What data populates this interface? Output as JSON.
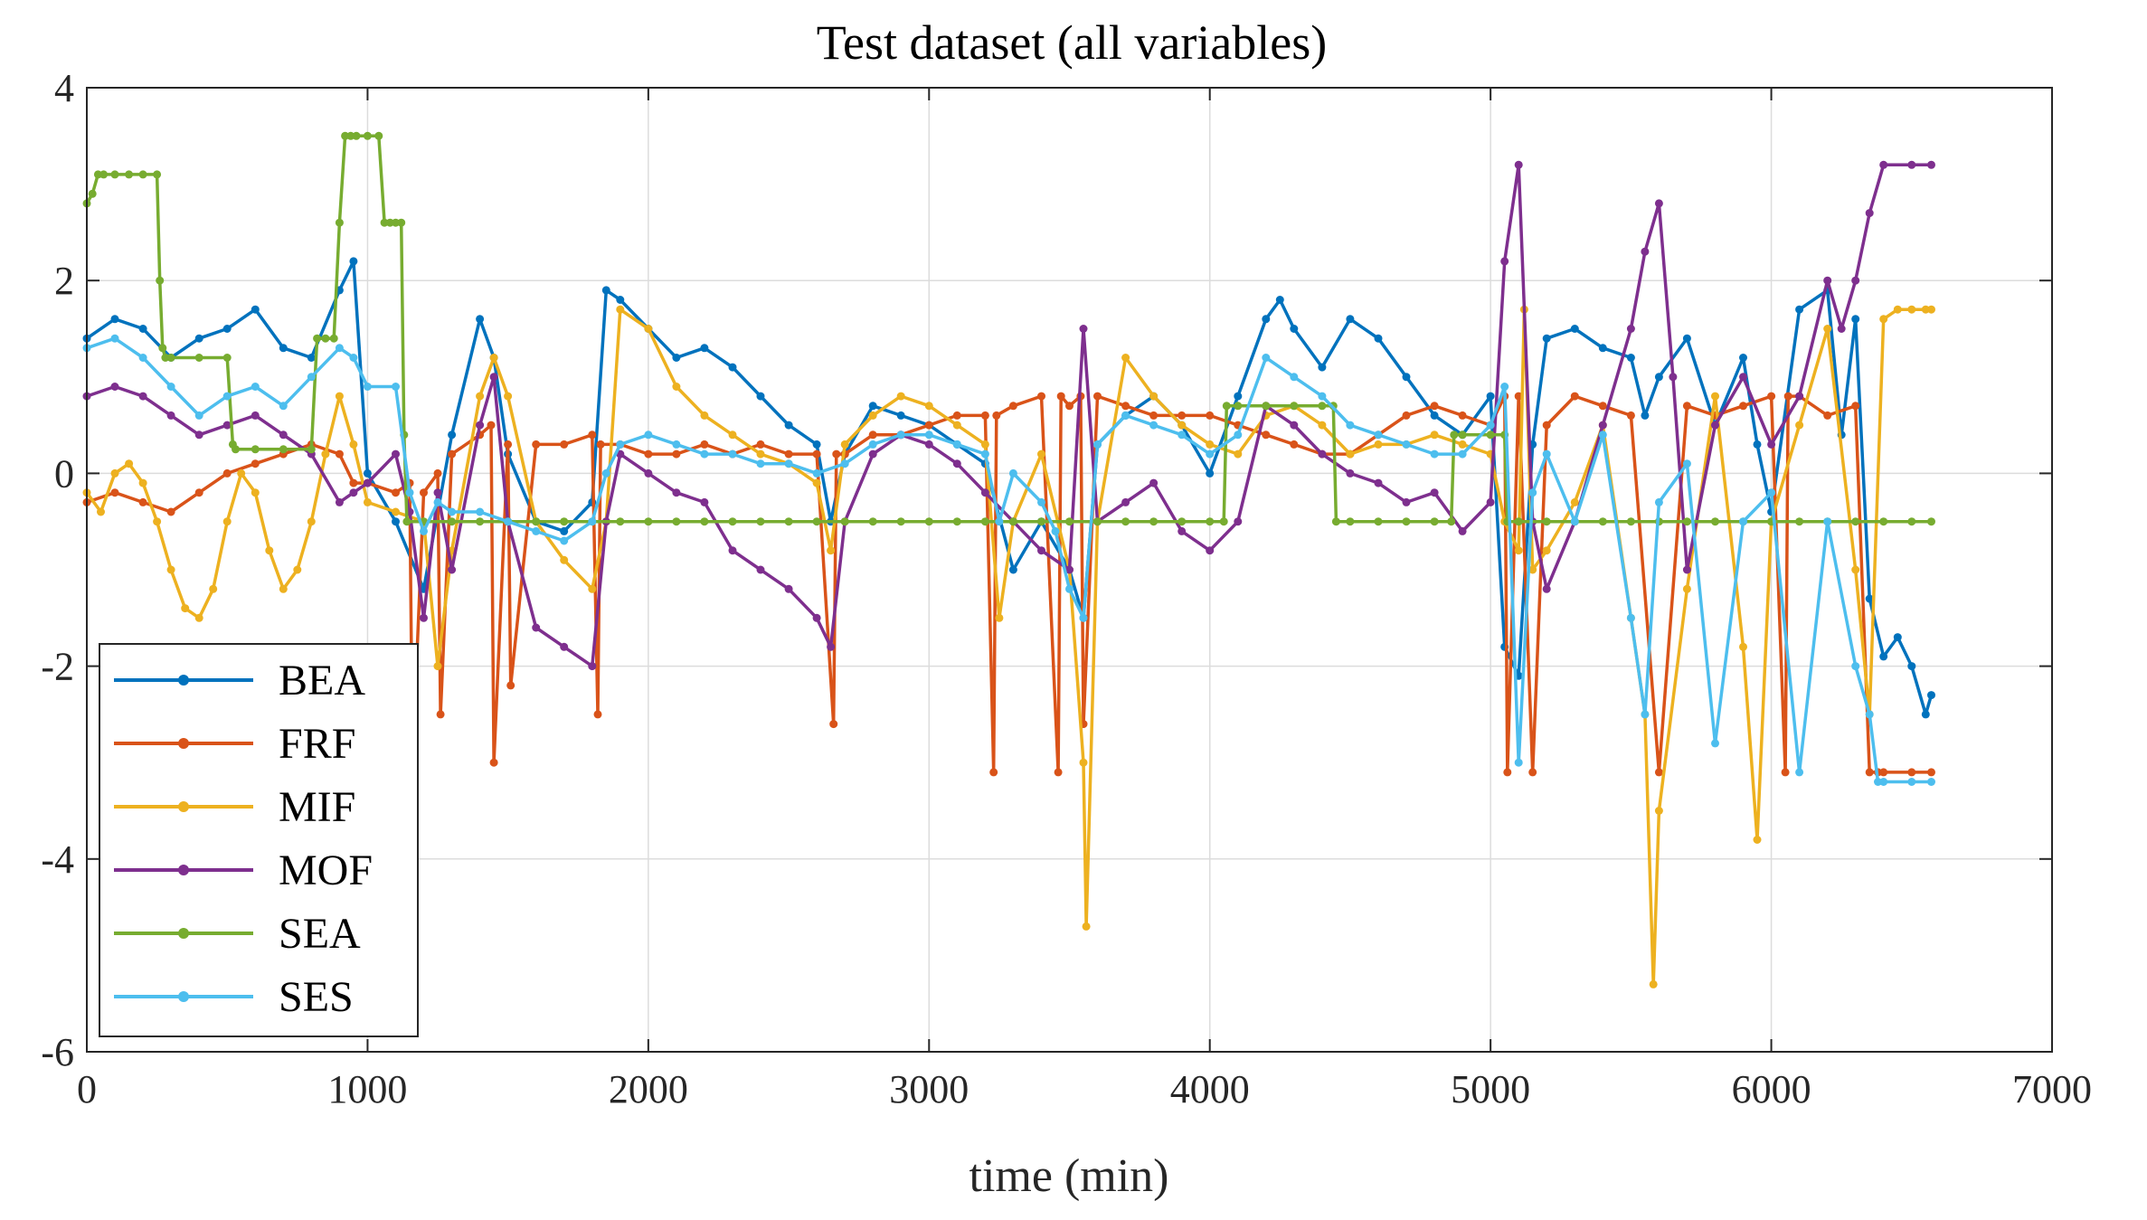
{
  "chart_data": {
    "type": "line",
    "title": "Test dataset (all variables)",
    "xlabel": "time (min)",
    "ylabel": "",
    "xlim": [
      0,
      7000
    ],
    "ylim": [
      -6,
      4
    ],
    "xticks": [
      "0",
      "1000",
      "2000",
      "3000",
      "4000",
      "5000",
      "6000",
      "7000"
    ],
    "yticks": [
      "4",
      "2",
      "0",
      "-2",
      "-4",
      "-6"
    ],
    "grid": true,
    "legend_position": "bottom-left",
    "series": [
      {
        "name": "BEA",
        "color": "#0072BD",
        "x": [
          0,
          100,
          200,
          300,
          400,
          500,
          600,
          700,
          800,
          900,
          950,
          1000,
          1100,
          1200,
          1300,
          1400,
          1450,
          1500,
          1600,
          1700,
          1800,
          1850,
          1900,
          2000,
          2100,
          2200,
          2300,
          2400,
          2500,
          2600,
          2650,
          2700,
          2800,
          2900,
          3000,
          3100,
          3200,
          3300,
          3400,
          3500,
          3550,
          3600,
          3700,
          3800,
          3900,
          4000,
          4100,
          4200,
          4250,
          4300,
          4400,
          4500,
          4600,
          4700,
          4800,
          4900,
          5000,
          5050,
          5100,
          5150,
          5200,
          5300,
          5400,
          5500,
          5550,
          5600,
          5700,
          5800,
          5900,
          5950,
          6000,
          6100,
          6200,
          6250,
          6300,
          6350,
          6400,
          6450,
          6500,
          6550,
          6570
        ],
        "y": [
          1.4,
          1.6,
          1.5,
          1.2,
          1.4,
          1.5,
          1.7,
          1.3,
          1.2,
          1.9,
          2.2,
          0.0,
          -0.5,
          -1.2,
          0.4,
          1.6,
          1.2,
          0.2,
          -0.5,
          -0.6,
          -0.3,
          1.9,
          1.8,
          1.5,
          1.2,
          1.3,
          1.1,
          0.8,
          0.5,
          0.3,
          -0.5,
          0.2,
          0.7,
          0.6,
          0.5,
          0.3,
          0.1,
          -1.0,
          -0.5,
          -1.0,
          -1.5,
          0.3,
          0.6,
          0.8,
          0.5,
          0.0,
          0.8,
          1.6,
          1.8,
          1.5,
          1.1,
          1.6,
          1.4,
          1.0,
          0.6,
          0.4,
          0.8,
          -1.8,
          -2.1,
          0.3,
          1.4,
          1.5,
          1.3,
          1.2,
          0.6,
          1.0,
          1.4,
          0.5,
          1.2,
          0.3,
          -0.4,
          1.7,
          1.9,
          0.4,
          1.6,
          -1.3,
          -1.9,
          -1.7,
          -2.0,
          -2.5,
          -2.3
        ]
      },
      {
        "name": "FRF",
        "color": "#D95319",
        "x": [
          0,
          100,
          200,
          300,
          400,
          500,
          600,
          700,
          800,
          900,
          950,
          1000,
          1100,
          1150,
          1160,
          1200,
          1250,
          1260,
          1300,
          1400,
          1440,
          1450,
          1500,
          1510,
          1600,
          1700,
          1800,
          1820,
          1830,
          1900,
          2000,
          2100,
          2200,
          2300,
          2400,
          2500,
          2600,
          2660,
          2670,
          2700,
          2800,
          2900,
          3000,
          3100,
          3200,
          3230,
          3240,
          3300,
          3400,
          3460,
          3470,
          3500,
          3540,
          3550,
          3600,
          3700,
          3800,
          3900,
          4000,
          4100,
          4200,
          4300,
          4400,
          4500,
          4600,
          4700,
          4800,
          4900,
          5000,
          5050,
          5060,
          5100,
          5150,
          5200,
          5300,
          5400,
          5500,
          5600,
          5700,
          5800,
          5900,
          6000,
          6050,
          6060,
          6100,
          6200,
          6300,
          6350,
          6380,
          6400,
          6500,
          6570
        ],
        "y": [
          -0.3,
          -0.2,
          -0.3,
          -0.4,
          -0.2,
          0.0,
          0.1,
          0.2,
          0.3,
          0.2,
          -0.1,
          -0.1,
          -0.2,
          -0.1,
          -3.0,
          -0.2,
          0.0,
          -2.5,
          0.2,
          0.4,
          0.5,
          -3.0,
          0.3,
          -2.2,
          0.3,
          0.3,
          0.4,
          -2.5,
          0.3,
          0.3,
          0.2,
          0.2,
          0.3,
          0.2,
          0.3,
          0.2,
          0.2,
          -2.6,
          0.2,
          0.2,
          0.4,
          0.4,
          0.5,
          0.6,
          0.6,
          -3.1,
          0.6,
          0.7,
          0.8,
          -3.1,
          0.8,
          0.7,
          0.8,
          -2.6,
          0.8,
          0.7,
          0.6,
          0.6,
          0.6,
          0.5,
          0.4,
          0.3,
          0.2,
          0.2,
          0.4,
          0.6,
          0.7,
          0.6,
          0.5,
          0.8,
          -3.1,
          0.8,
          -3.1,
          0.5,
          0.8,
          0.7,
          0.6,
          -3.1,
          0.7,
          0.6,
          0.7,
          0.8,
          -3.1,
          0.8,
          0.8,
          0.6,
          0.7,
          -3.1,
          -3.1,
          -3.1,
          -3.1,
          -3.1
        ]
      },
      {
        "name": "MIF",
        "color": "#EDB120",
        "x": [
          0,
          50,
          100,
          150,
          200,
          250,
          300,
          350,
          400,
          450,
          500,
          550,
          600,
          650,
          700,
          750,
          800,
          850,
          900,
          950,
          1000,
          1100,
          1200,
          1250,
          1300,
          1400,
          1450,
          1500,
          1600,
          1700,
          1800,
          1850,
          1900,
          2000,
          2100,
          2200,
          2300,
          2400,
          2500,
          2600,
          2650,
          2700,
          2800,
          2900,
          3000,
          3100,
          3200,
          3250,
          3300,
          3400,
          3500,
          3550,
          3560,
          3600,
          3700,
          3800,
          3900,
          4000,
          4100,
          4200,
          4300,
          4400,
          4500,
          4600,
          4700,
          4800,
          4900,
          5000,
          5050,
          5100,
          5120,
          5150,
          5200,
          5300,
          5400,
          5500,
          5550,
          5580,
          5600,
          5700,
          5800,
          5900,
          5950,
          6000,
          6100,
          6200,
          6300,
          6350,
          6400,
          6450,
          6500,
          6550,
          6570
        ],
        "y": [
          -0.2,
          -0.4,
          0.0,
          0.1,
          -0.1,
          -0.5,
          -1.0,
          -1.4,
          -1.5,
          -1.2,
          -0.5,
          0.0,
          -0.2,
          -0.8,
          -1.2,
          -1.0,
          -0.5,
          0.2,
          0.8,
          0.3,
          -0.3,
          -0.4,
          -0.5,
          -2.0,
          -0.8,
          0.8,
          1.2,
          0.8,
          -0.5,
          -0.9,
          -1.2,
          -0.5,
          1.7,
          1.5,
          0.9,
          0.6,
          0.4,
          0.2,
          0.1,
          -0.1,
          -0.8,
          0.3,
          0.6,
          0.8,
          0.7,
          0.5,
          0.3,
          -1.5,
          -0.5,
          0.2,
          -1.0,
          -3.0,
          -4.7,
          -0.5,
          1.2,
          0.8,
          0.5,
          0.3,
          0.2,
          0.6,
          0.7,
          0.5,
          0.2,
          0.3,
          0.3,
          0.4,
          0.3,
          0.2,
          -0.5,
          -0.8,
          1.7,
          -1.0,
          -0.8,
          -0.3,
          0.5,
          -1.5,
          -2.5,
          -5.3,
          -3.5,
          -1.2,
          0.8,
          -1.8,
          -3.8,
          -0.5,
          0.5,
          1.5,
          -1.0,
          -2.5,
          1.6,
          1.7,
          1.7,
          1.7,
          1.7
        ]
      },
      {
        "name": "MOF",
        "color": "#7E2F8E",
        "x": [
          0,
          100,
          200,
          300,
          400,
          500,
          600,
          700,
          800,
          900,
          950,
          1000,
          1100,
          1150,
          1200,
          1250,
          1300,
          1400,
          1450,
          1500,
          1600,
          1700,
          1800,
          1850,
          1900,
          2000,
          2100,
          2200,
          2300,
          2400,
          2500,
          2600,
          2650,
          2700,
          2800,
          2900,
          3000,
          3100,
          3200,
          3300,
          3400,
          3500,
          3550,
          3600,
          3700,
          3800,
          3900,
          4000,
          4100,
          4200,
          4300,
          4400,
          4500,
          4600,
          4700,
          4800,
          4900,
          5000,
          5050,
          5100,
          5150,
          5200,
          5300,
          5400,
          5500,
          5550,
          5600,
          5650,
          5700,
          5800,
          5900,
          6000,
          6100,
          6200,
          6250,
          6300,
          6350,
          6400,
          6500,
          6570
        ],
        "y": [
          0.8,
          0.9,
          0.8,
          0.6,
          0.4,
          0.5,
          0.6,
          0.4,
          0.2,
          -0.3,
          -0.2,
          -0.1,
          0.2,
          -0.4,
          -1.5,
          -0.2,
          -1.0,
          0.5,
          1.0,
          -0.5,
          -1.6,
          -1.8,
          -2.0,
          -0.5,
          0.2,
          0.0,
          -0.2,
          -0.3,
          -0.8,
          -1.0,
          -1.2,
          -1.5,
          -1.8,
          -0.5,
          0.2,
          0.4,
          0.3,
          0.1,
          -0.2,
          -0.5,
          -0.8,
          -1.0,
          1.5,
          -0.5,
          -0.3,
          -0.1,
          -0.6,
          -0.8,
          -0.5,
          0.7,
          0.5,
          0.2,
          0.0,
          -0.1,
          -0.3,
          -0.2,
          -0.6,
          -0.3,
          2.2,
          3.2,
          -0.5,
          -1.2,
          -0.5,
          0.5,
          1.5,
          2.3,
          2.8,
          1.0,
          -1.0,
          0.5,
          1.0,
          0.3,
          0.8,
          2.0,
          1.5,
          2.0,
          2.7,
          3.2,
          3.2,
          3.2
        ]
      },
      {
        "name": "SEA",
        "color": "#77AC30",
        "x": [
          0,
          20,
          40,
          60,
          100,
          150,
          200,
          250,
          260,
          270,
          280,
          300,
          400,
          500,
          520,
          530,
          600,
          700,
          800,
          820,
          850,
          880,
          900,
          920,
          940,
          960,
          1000,
          1040,
          1060,
          1080,
          1100,
          1120,
          1130,
          1140,
          1200,
          1300,
          1400,
          1500,
          1600,
          1700,
          1800,
          1900,
          2000,
          2100,
          2200,
          2300,
          2400,
          2500,
          2600,
          2700,
          2800,
          2900,
          3000,
          3100,
          3200,
          3300,
          3400,
          3500,
          3600,
          3700,
          3800,
          3900,
          4000,
          4050,
          4060,
          4100,
          4200,
          4300,
          4400,
          4440,
          4450,
          4500,
          4600,
          4700,
          4800,
          4860,
          4870,
          4900,
          5000,
          5050,
          5060,
          5100,
          5200,
          5300,
          5400,
          5500,
          5600,
          5700,
          5800,
          5900,
          6000,
          6100,
          6200,
          6300,
          6400,
          6500,
          6570
        ],
        "y": [
          2.8,
          2.9,
          3.1,
          3.1,
          3.1,
          3.1,
          3.1,
          3.1,
          2.0,
          1.3,
          1.2,
          1.2,
          1.2,
          1.2,
          0.3,
          0.25,
          0.25,
          0.25,
          0.25,
          1.4,
          1.4,
          1.4,
          2.6,
          3.5,
          3.5,
          3.5,
          3.5,
          3.5,
          2.6,
          2.6,
          2.6,
          2.6,
          0.4,
          -0.5,
          -0.5,
          -0.5,
          -0.5,
          -0.5,
          -0.5,
          -0.5,
          -0.5,
          -0.5,
          -0.5,
          -0.5,
          -0.5,
          -0.5,
          -0.5,
          -0.5,
          -0.5,
          -0.5,
          -0.5,
          -0.5,
          -0.5,
          -0.5,
          -0.5,
          -0.5,
          -0.5,
          -0.5,
          -0.5,
          -0.5,
          -0.5,
          -0.5,
          -0.5,
          -0.5,
          0.7,
          0.7,
          0.7,
          0.7,
          0.7,
          0.7,
          -0.5,
          -0.5,
          -0.5,
          -0.5,
          -0.5,
          -0.5,
          0.4,
          0.4,
          0.4,
          0.4,
          -0.5,
          -0.5,
          -0.5,
          -0.5,
          -0.5,
          -0.5,
          -0.5,
          -0.5,
          -0.5,
          -0.5,
          -0.5,
          -0.5,
          -0.5,
          -0.5,
          -0.5,
          -0.5,
          -0.5
        ]
      },
      {
        "name": "SES",
        "color": "#4DBEEE",
        "x": [
          0,
          100,
          200,
          300,
          400,
          500,
          600,
          700,
          800,
          900,
          950,
          1000,
          1100,
          1150,
          1200,
          1250,
          1300,
          1400,
          1500,
          1600,
          1700,
          1800,
          1850,
          1900,
          2000,
          2100,
          2200,
          2300,
          2400,
          2500,
          2600,
          2700,
          2800,
          2900,
          3000,
          3100,
          3200,
          3250,
          3300,
          3400,
          3450,
          3500,
          3550,
          3600,
          3700,
          3800,
          3900,
          4000,
          4100,
          4200,
          4300,
          4400,
          4500,
          4600,
          4700,
          4800,
          4900,
          5000,
          5050,
          5100,
          5150,
          5200,
          5300,
          5400,
          5500,
          5550,
          5600,
          5700,
          5800,
          5900,
          6000,
          6100,
          6200,
          6300,
          6350,
          6380,
          6400,
          6500,
          6570
        ],
        "y": [
          1.3,
          1.4,
          1.2,
          0.9,
          0.6,
          0.8,
          0.9,
          0.7,
          1.0,
          1.3,
          1.2,
          0.9,
          0.9,
          -0.2,
          -0.6,
          -0.3,
          -0.4,
          -0.4,
          -0.5,
          -0.6,
          -0.7,
          -0.5,
          0.0,
          0.3,
          0.4,
          0.3,
          0.2,
          0.2,
          0.1,
          0.1,
          0.0,
          0.1,
          0.3,
          0.4,
          0.4,
          0.3,
          0.2,
          -0.5,
          0.0,
          -0.3,
          -0.6,
          -1.2,
          -1.5,
          0.3,
          0.6,
          0.5,
          0.4,
          0.2,
          0.4,
          1.2,
          1.0,
          0.8,
          0.5,
          0.4,
          0.3,
          0.2,
          0.2,
          0.5,
          0.9,
          -3.0,
          -0.2,
          0.2,
          -0.5,
          0.4,
          -1.5,
          -2.5,
          -0.3,
          0.1,
          -2.8,
          -0.5,
          -0.2,
          -3.1,
          -0.5,
          -2.0,
          -2.5,
          -3.2,
          -3.2,
          -3.2,
          -3.2
        ]
      }
    ]
  }
}
